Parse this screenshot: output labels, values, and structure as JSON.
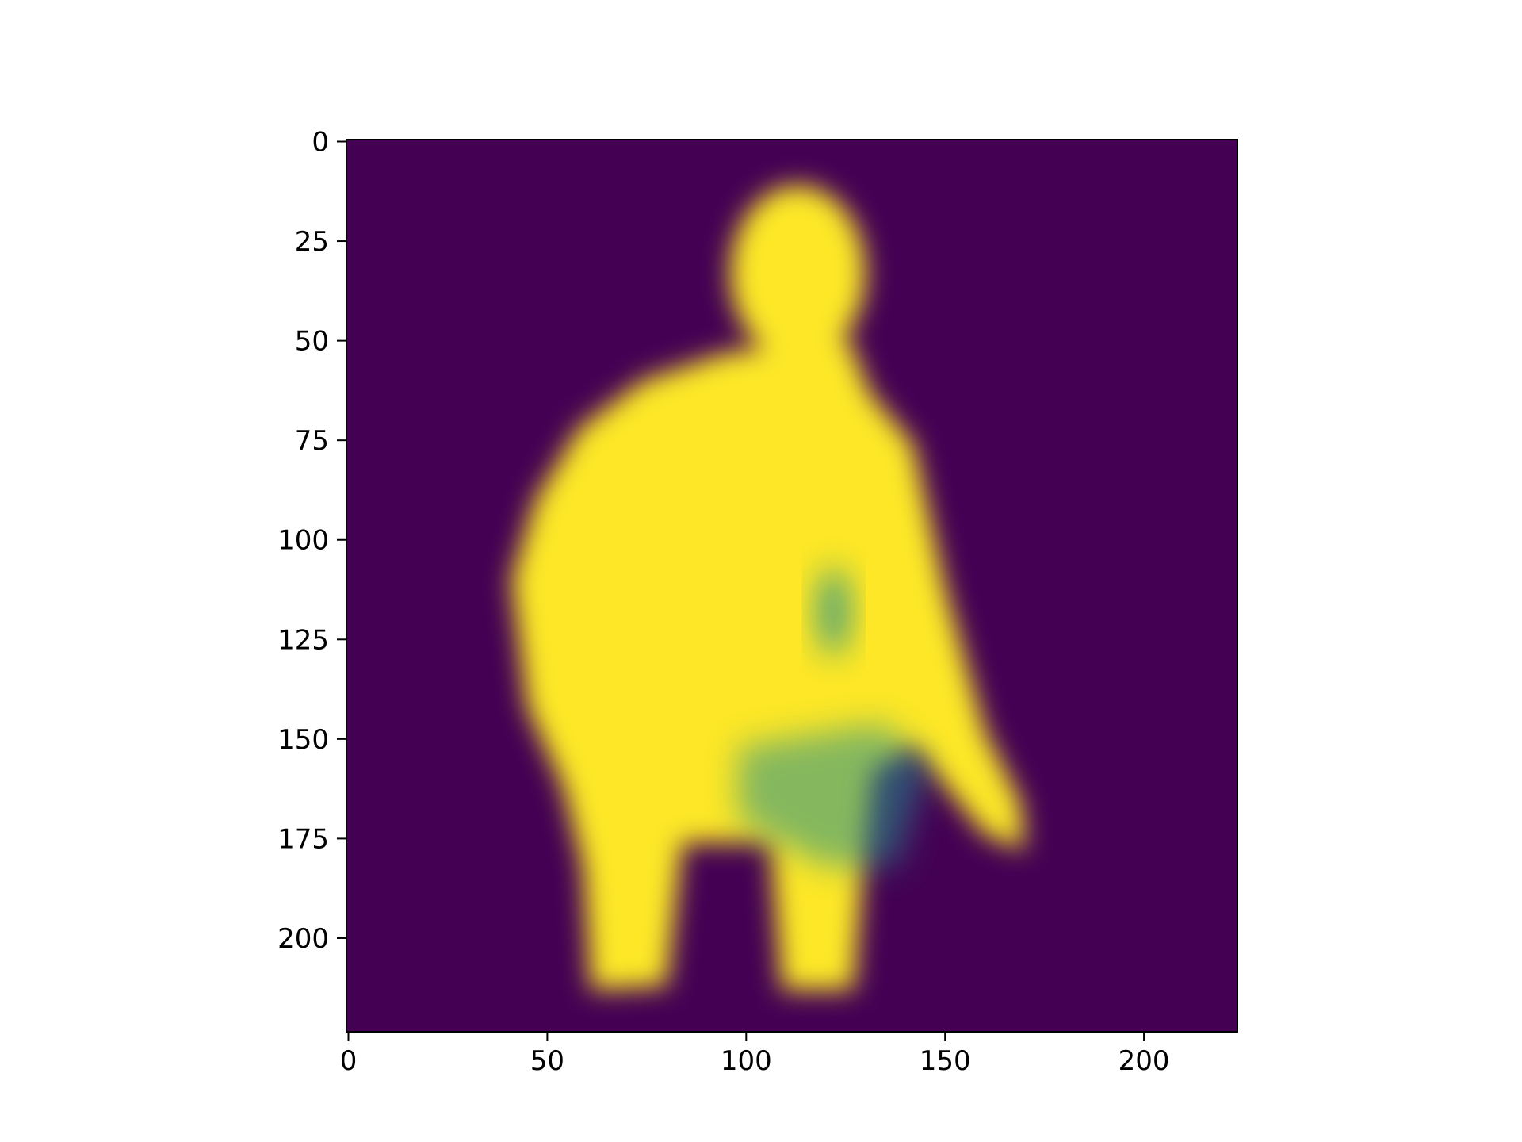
{
  "chart_data": {
    "type": "image",
    "xlim": [
      -0.5,
      223.5
    ],
    "ylim": [
      223.5,
      -0.5
    ],
    "xticks": [
      0,
      50,
      100,
      150,
      200
    ],
    "yticks": [
      0,
      25,
      50,
      75,
      100,
      125,
      150,
      175,
      200
    ],
    "colormap": {
      "low": "#440154",
      "mid": "#21918c",
      "high": "#fde725"
    }
  }
}
